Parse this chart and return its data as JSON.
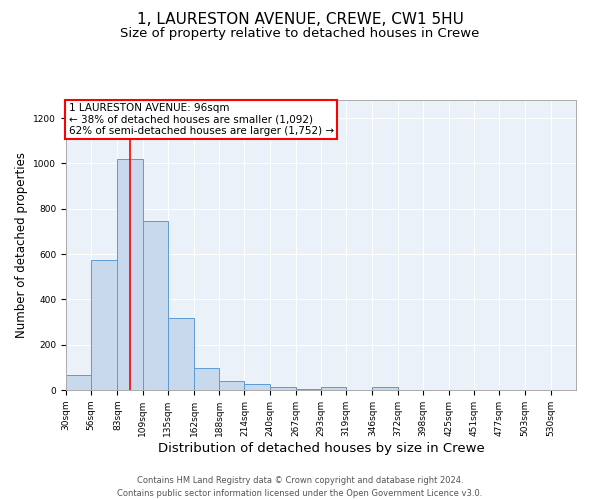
{
  "title1": "1, LAURESTON AVENUE, CREWE, CW1 5HU",
  "title2": "Size of property relative to detached houses in Crewe",
  "xlabel": "Distribution of detached houses by size in Crewe",
  "ylabel": "Number of detached properties",
  "footer1": "Contains HM Land Registry data © Crown copyright and database right 2024.",
  "footer2": "Contains public sector information licensed under the Open Government Licence v3.0.",
  "annotation_line1": "1 LAURESTON AVENUE: 96sqm",
  "annotation_line2": "← 38% of detached houses are smaller (1,092)",
  "annotation_line3": "62% of semi-detached houses are larger (1,752) →",
  "bar_edges": [
    30,
    56,
    83,
    109,
    135,
    162,
    188,
    214,
    240,
    267,
    293,
    319,
    346,
    372,
    398,
    425,
    451,
    477,
    503,
    530,
    556
  ],
  "bar_heights": [
    65,
    575,
    1020,
    748,
    320,
    98,
    38,
    25,
    13,
    5,
    13,
    0,
    13,
    0,
    0,
    0,
    0,
    0,
    0,
    0
  ],
  "bar_color": "#c8d9ed",
  "bar_edge_color": "#5b9bd5",
  "red_line_x": 96,
  "ylim": [
    0,
    1280
  ],
  "yticks": [
    0,
    200,
    400,
    600,
    800,
    1000,
    1200
  ],
  "bg_color": "#eaf1f8",
  "annotation_box_color": "white",
  "annotation_box_edge": "red",
  "title1_fontsize": 11,
  "title2_fontsize": 9.5,
  "xlabel_fontsize": 9.5,
  "ylabel_fontsize": 8.5,
  "footer_fontsize": 6.0,
  "annot_fontsize": 7.5,
  "tick_fontsize": 6.5
}
